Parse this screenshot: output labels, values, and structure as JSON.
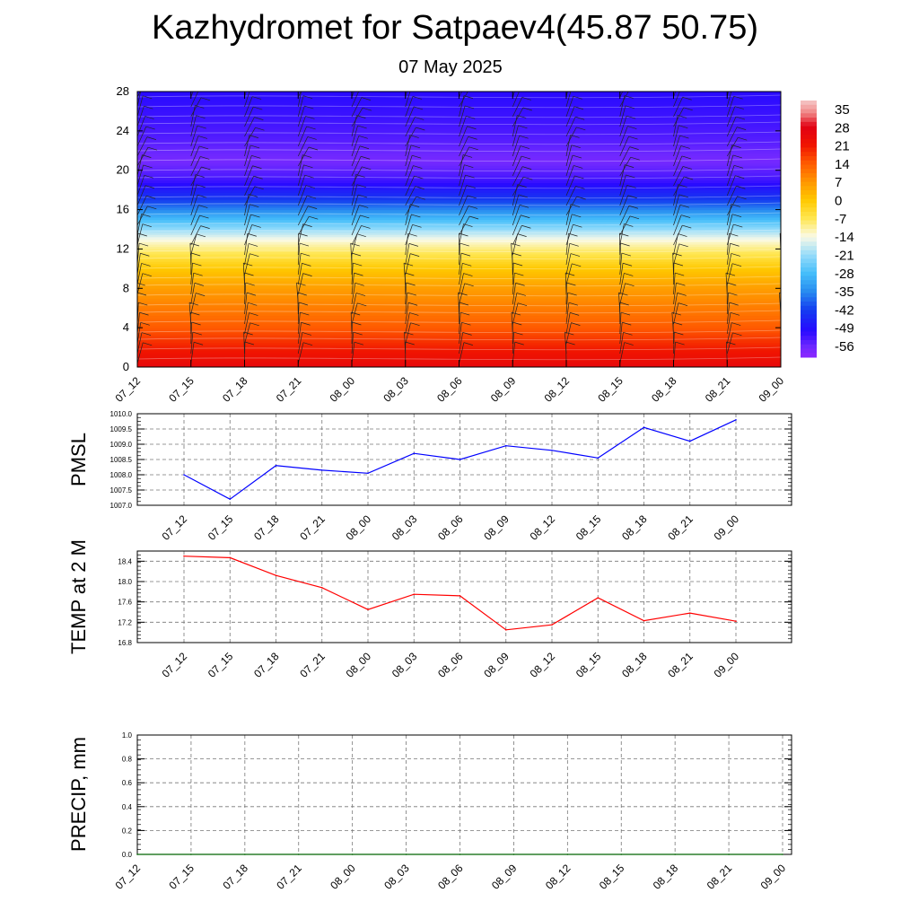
{
  "title": "Kazhydromet for Satpaev4(45.87 50.75)",
  "subtitle": "07 May 2025",
  "time_labels": [
    "07_12",
    "07_15",
    "07_18",
    "07_21",
    "08_00",
    "08_03",
    "08_06",
    "08_09",
    "08_12",
    "08_15",
    "08_18",
    "08_21",
    "09_00"
  ],
  "chart_data": [
    {
      "type": "heatmap",
      "y_ticks": [
        0,
        4,
        8,
        12,
        16,
        20,
        24,
        28
      ],
      "ylim": [
        0,
        28
      ],
      "x": [
        "07_12",
        "07_15",
        "07_18",
        "07_21",
        "08_00",
        "08_03",
        "08_06",
        "08_09",
        "08_12",
        "08_15",
        "08_18",
        "08_21",
        "09_00"
      ],
      "colorbar_labels": [
        "35",
        "28",
        "21",
        "14",
        "7",
        "0",
        "-7",
        "-14",
        "-21",
        "-28",
        "-35",
        "-42",
        "-49",
        "-56"
      ],
      "colorbar_range": [
        -60,
        38
      ],
      "vertical_temperature_profile": [
        {
          "level": 0,
          "value": 25
        },
        {
          "level": 2,
          "value": 20
        },
        {
          "level": 4,
          "value": 14
        },
        {
          "level": 6,
          "value": 10
        },
        {
          "level": 8,
          "value": 6
        },
        {
          "level": 10,
          "value": 0
        },
        {
          "level": 12,
          "value": -9
        },
        {
          "level": 13,
          "value": -14
        },
        {
          "level": 15,
          "value": -28
        },
        {
          "level": 17,
          "value": -42
        },
        {
          "level": 19,
          "value": -52
        },
        {
          "level": 21,
          "value": -57
        },
        {
          "level": 23,
          "value": -54
        },
        {
          "level": 25,
          "value": -52
        },
        {
          "level": 28,
          "value": -50
        }
      ],
      "wind_barbs": "shown at every forecast time and height"
    },
    {
      "type": "line",
      "ylabel": "PMSL",
      "ylim": [
        1007.0,
        1010.0
      ],
      "y_ticks": [
        "1007.0",
        "1007.5",
        "1008.0",
        "1008.5",
        "1009.0",
        "1009.5",
        "1010.0"
      ],
      "x": [
        "07_12",
        "07_15",
        "07_18",
        "07_21",
        "08_00",
        "08_03",
        "08_06",
        "08_09",
        "08_12",
        "08_15",
        "08_18",
        "08_21",
        "09_00"
      ],
      "series": [
        {
          "values": [
            1008.0,
            1007.2,
            1008.3,
            1008.15,
            1008.05,
            1008.7,
            1008.5,
            1008.95,
            1008.8,
            1008.55,
            1009.55,
            1009.1,
            1009.8
          ],
          "color": "#0000ff"
        }
      ],
      "grid": true
    },
    {
      "type": "line",
      "ylabel": "TEMP at 2 M",
      "ylim": [
        16.8,
        18.6
      ],
      "y_ticks": [
        "16.8",
        "17.2",
        "17.6",
        "18.0",
        "18.4"
      ],
      "x": [
        "07_12",
        "07_15",
        "07_18",
        "07_21",
        "08_00",
        "08_03",
        "08_06",
        "08_09",
        "08_12",
        "08_15",
        "08_18",
        "08_21",
        "09_00"
      ],
      "series": [
        {
          "values": [
            18.5,
            18.47,
            18.12,
            17.88,
            17.45,
            17.75,
            17.72,
            17.05,
            17.15,
            17.68,
            17.23,
            17.38,
            17.22
          ],
          "color": "#ff0000"
        }
      ],
      "grid": true
    },
    {
      "type": "line",
      "ylabel": "PRECIP, mm",
      "ylim": [
        0.0,
        1.0
      ],
      "y_ticks": [
        "0.0",
        "0.2",
        "0.4",
        "0.6",
        "0.8",
        "1.0"
      ],
      "x": [
        "07_12",
        "07_15",
        "07_18",
        "07_21",
        "08_00",
        "08_03",
        "08_06",
        "08_09",
        "08_12",
        "08_15",
        "08_18",
        "08_21",
        "09_00"
      ],
      "series": [
        {
          "values": [
            0,
            0,
            0,
            0,
            0,
            0,
            0,
            0,
            0,
            0,
            0,
            0,
            0
          ],
          "color": "#006400"
        }
      ],
      "grid": true
    }
  ]
}
